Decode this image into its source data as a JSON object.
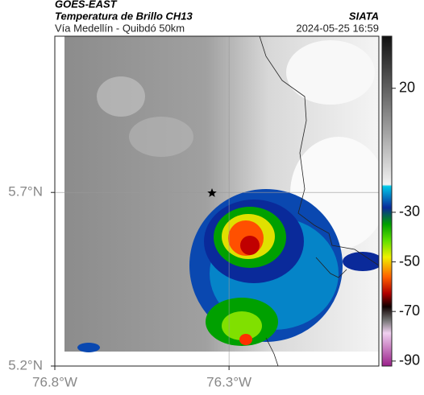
{
  "header": {
    "title": "GOES-EAST",
    "subtitle": "Temperatura de Brillo CH13",
    "caption": "Vía Medellín - Quibdó 50km",
    "source": "SIATA",
    "timestamp": "2024-05-25 16:59"
  },
  "map": {
    "lonlim": [
      -76.8,
      -75.87
    ],
    "latlim": [
      5.2,
      6.15
    ],
    "lon_ticks": [
      {
        "value": -76.8,
        "label": "76.8°W"
      },
      {
        "value": -76.3,
        "label": "76.3°W"
      }
    ],
    "lat_ticks": [
      {
        "value": 5.7,
        "label": "5.7°N"
      },
      {
        "value": 5.2,
        "label": "5.2°N"
      }
    ]
  },
  "colorbar": {
    "clim": [
      -92,
      41
    ],
    "ticks": [
      20,
      -30,
      -50,
      -70,
      -90
    ]
  }
}
